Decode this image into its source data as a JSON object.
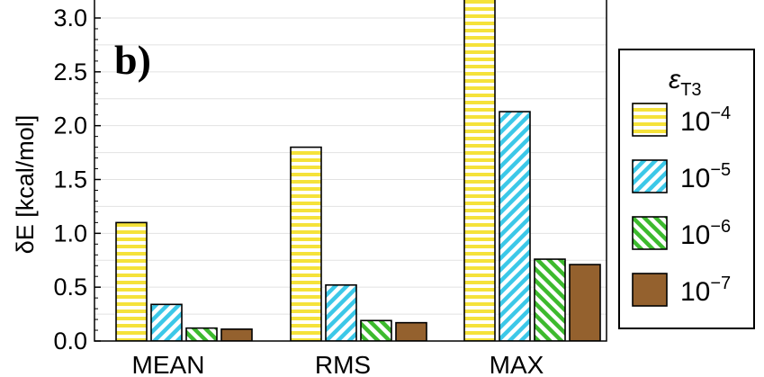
{
  "chart_data": {
    "type": "bar",
    "panel_label": "b)",
    "ylabel": "δE [kcal/mol]",
    "ylim": [
      0,
      3.0
    ],
    "yticks": [
      0.0,
      0.5,
      1.0,
      1.5,
      2.0,
      2.5,
      3.0
    ],
    "ytick_labels": [
      "0.0",
      "0.5",
      "1.0",
      "1.5",
      "2.0",
      "2.5",
      "3.0"
    ],
    "grid": true,
    "categories": [
      "MEAN",
      "RMS",
      "MAX"
    ],
    "series": [
      {
        "name": "10^-4",
        "base": "10",
        "exponent": "−4",
        "values": [
          1.1,
          1.8,
          3.2
        ],
        "color": "#f5e23a",
        "pattern": "horizontal"
      },
      {
        "name": "10^-5",
        "base": "10",
        "exponent": "−5",
        "values": [
          0.34,
          0.52,
          2.13
        ],
        "color": "#3cc8e8",
        "pattern": "diagonal"
      },
      {
        "name": "10^-6",
        "base": "10",
        "exponent": "−6",
        "values": [
          0.12,
          0.19,
          0.76
        ],
        "color": "#3dba2e",
        "pattern": "antidiagonal"
      },
      {
        "name": "10^-7",
        "base": "10",
        "exponent": "−7",
        "values": [
          0.11,
          0.17,
          0.71
        ],
        "color": "#94612e",
        "pattern": "solid"
      }
    ],
    "legend": {
      "title_main": "ε",
      "title_sub": "T3",
      "position": "right"
    }
  }
}
